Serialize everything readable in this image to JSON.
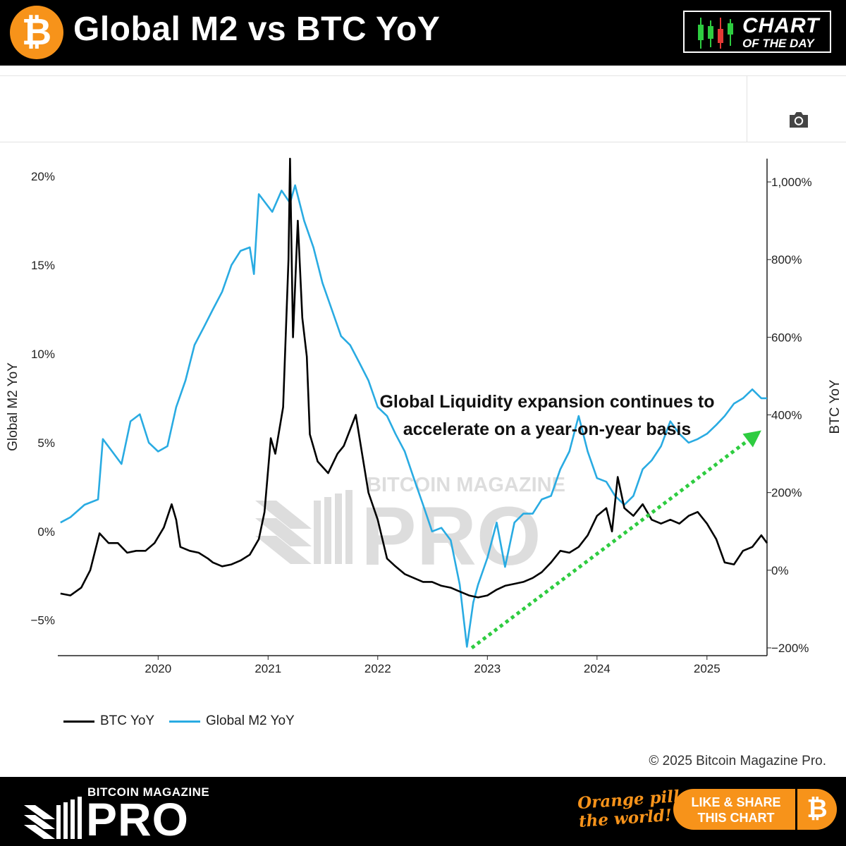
{
  "header": {
    "logo_symbol": "₿",
    "title": "Global M2 vs BTC YoY",
    "badge_line1": "CHART",
    "badge_line2": "OF THE DAY"
  },
  "toolbar": {
    "camera_icon": "camera-icon"
  },
  "watermark": {
    "small": "BITCOIN MAGAZINE",
    "big": "PRO"
  },
  "annotation": {
    "line1": "Global Liquidity expansion continues to",
    "line2": "accelerate on a year-on-year basis"
  },
  "footer": {
    "copyright": "© 2025 Bitcoin Magazine Pro.",
    "brand_small": "BITCOIN MAGAZINE",
    "brand_big": "PRO",
    "tagline_line1": "Orange pill",
    "tagline_line2": "the world!",
    "share_line1": "LIKE & SHARE",
    "share_line2": "THIS CHART",
    "share_symbol": "₿"
  },
  "colors": {
    "btc": "#000000",
    "m2": "#29abe2",
    "trend": "#2ecc40",
    "brand_orange": "#f7931a"
  },
  "chart_data": {
    "type": "line",
    "x_range": [
      "2019-02-01",
      "2025-07-20"
    ],
    "x_ticks": [
      "2020",
      "2021",
      "2022",
      "2023",
      "2024",
      "2025"
    ],
    "y_left": {
      "label": "Global M2 YoY",
      "range": [
        -7,
        21
      ],
      "ticks": [
        20,
        15,
        10,
        5,
        0,
        -5
      ],
      "tick_labels": [
        "20%",
        "15%",
        "10%",
        "5%",
        "0%",
        "−5%"
      ]
    },
    "y_right": {
      "label": "BTC YoY",
      "range": [
        -220,
        1060
      ],
      "ticks": [
        1000,
        800,
        600,
        400,
        200,
        0,
        -200
      ],
      "tick_labels": [
        "1,000%",
        "800%",
        "600%",
        "400%",
        "200%",
        "0%",
        "−200%"
      ]
    },
    "legend": {
      "placement": "bottom-left"
    },
    "series": [
      {
        "name": "BTC YoY",
        "axis": "right",
        "points": [
          [
            "2019-02-10",
            -60
          ],
          [
            "2019-03-15",
            -65
          ],
          [
            "2019-04-20",
            -45
          ],
          [
            "2019-05-20",
            0
          ],
          [
            "2019-06-20",
            95
          ],
          [
            "2019-07-20",
            70
          ],
          [
            "2019-08-20",
            70
          ],
          [
            "2019-09-20",
            45
          ],
          [
            "2019-10-20",
            50
          ],
          [
            "2019-11-20",
            50
          ],
          [
            "2019-12-20",
            70
          ],
          [
            "2020-01-20",
            110
          ],
          [
            "2020-02-15",
            170
          ],
          [
            "2020-03-01",
            130
          ],
          [
            "2020-03-15",
            60
          ],
          [
            "2020-04-15",
            50
          ],
          [
            "2020-05-15",
            45
          ],
          [
            "2020-06-15",
            30
          ],
          [
            "2020-07-01",
            20
          ],
          [
            "2020-08-01",
            10
          ],
          [
            "2020-09-01",
            15
          ],
          [
            "2020-10-01",
            25
          ],
          [
            "2020-11-01",
            40
          ],
          [
            "2020-12-01",
            80
          ],
          [
            "2020-12-20",
            150
          ],
          [
            "2021-01-10",
            340
          ],
          [
            "2021-01-25",
            300
          ],
          [
            "2021-02-20",
            420
          ],
          [
            "2021-03-10",
            800
          ],
          [
            "2021-03-15",
            1060
          ],
          [
            "2021-03-25",
            600
          ],
          [
            "2021-04-10",
            900
          ],
          [
            "2021-04-25",
            650
          ],
          [
            "2021-05-10",
            550
          ],
          [
            "2021-05-20",
            350
          ],
          [
            "2021-06-15",
            280
          ],
          [
            "2021-07-20",
            250
          ],
          [
            "2021-08-20",
            300
          ],
          [
            "2021-09-10",
            320
          ],
          [
            "2021-10-20",
            400
          ],
          [
            "2021-11-10",
            300
          ],
          [
            "2021-12-01",
            200
          ],
          [
            "2022-01-01",
            130
          ],
          [
            "2022-02-01",
            30
          ],
          [
            "2022-03-01",
            10
          ],
          [
            "2022-04-01",
            -10
          ],
          [
            "2022-05-01",
            -20
          ],
          [
            "2022-06-01",
            -30
          ],
          [
            "2022-07-01",
            -30
          ],
          [
            "2022-08-01",
            -40
          ],
          [
            "2022-09-01",
            -45
          ],
          [
            "2022-10-01",
            -55
          ],
          [
            "2022-11-01",
            -65
          ],
          [
            "2022-12-01",
            -70
          ],
          [
            "2023-01-01",
            -65
          ],
          [
            "2023-02-01",
            -50
          ],
          [
            "2023-03-01",
            -40
          ],
          [
            "2023-04-01",
            -35
          ],
          [
            "2023-05-01",
            -30
          ],
          [
            "2023-06-01",
            -20
          ],
          [
            "2023-07-01",
            -5
          ],
          [
            "2023-08-01",
            20
          ],
          [
            "2023-09-01",
            50
          ],
          [
            "2023-10-01",
            45
          ],
          [
            "2023-11-01",
            60
          ],
          [
            "2023-12-01",
            90
          ],
          [
            "2024-01-01",
            140
          ],
          [
            "2024-02-01",
            160
          ],
          [
            "2024-02-20",
            100
          ],
          [
            "2024-03-10",
            240
          ],
          [
            "2024-04-01",
            160
          ],
          [
            "2024-05-01",
            140
          ],
          [
            "2024-06-01",
            170
          ],
          [
            "2024-07-01",
            130
          ],
          [
            "2024-08-01",
            120
          ],
          [
            "2024-09-01",
            130
          ],
          [
            "2024-10-01",
            120
          ],
          [
            "2024-11-01",
            140
          ],
          [
            "2024-12-01",
            150
          ],
          [
            "2025-01-01",
            120
          ],
          [
            "2025-02-01",
            80
          ],
          [
            "2025-03-01",
            20
          ],
          [
            "2025-04-01",
            15
          ],
          [
            "2025-05-01",
            50
          ],
          [
            "2025-06-01",
            60
          ],
          [
            "2025-07-01",
            90
          ],
          [
            "2025-07-20",
            70
          ]
        ]
      },
      {
        "name": "Global M2 YoY",
        "axis": "left",
        "points": [
          [
            "2019-02-10",
            0.5
          ],
          [
            "2019-03-15",
            0.8
          ],
          [
            "2019-05-01",
            1.5
          ],
          [
            "2019-06-15",
            1.8
          ],
          [
            "2019-07-01",
            5.2
          ],
          [
            "2019-08-01",
            4.5
          ],
          [
            "2019-09-01",
            3.8
          ],
          [
            "2019-10-01",
            6.2
          ],
          [
            "2019-11-01",
            6.6
          ],
          [
            "2019-12-01",
            5.0
          ],
          [
            "2020-01-01",
            4.5
          ],
          [
            "2020-02-01",
            4.8
          ],
          [
            "2020-03-01",
            7.0
          ],
          [
            "2020-04-01",
            8.5
          ],
          [
            "2020-05-01",
            10.5
          ],
          [
            "2020-06-01",
            11.5
          ],
          [
            "2020-07-01",
            12.5
          ],
          [
            "2020-08-01",
            13.5
          ],
          [
            "2020-09-01",
            15.0
          ],
          [
            "2020-10-01",
            15.8
          ],
          [
            "2020-11-01",
            16.0
          ],
          [
            "2020-11-15",
            14.5
          ],
          [
            "2020-12-01",
            19.0
          ],
          [
            "2021-01-15",
            18.0
          ],
          [
            "2021-02-15",
            19.2
          ],
          [
            "2021-03-15",
            18.5
          ],
          [
            "2021-04-01",
            19.5
          ],
          [
            "2021-05-01",
            17.5
          ],
          [
            "2021-06-01",
            16.0
          ],
          [
            "2021-07-01",
            14.0
          ],
          [
            "2021-08-01",
            12.5
          ],
          [
            "2021-09-01",
            11.0
          ],
          [
            "2021-10-01",
            10.5
          ],
          [
            "2021-11-01",
            9.5
          ],
          [
            "2021-12-01",
            8.5
          ],
          [
            "2022-01-01",
            7.0
          ],
          [
            "2022-02-01",
            6.5
          ],
          [
            "2022-03-01",
            5.5
          ],
          [
            "2022-04-01",
            4.5
          ],
          [
            "2022-05-01",
            3.0
          ],
          [
            "2022-06-01",
            1.5
          ],
          [
            "2022-07-01",
            0.0
          ],
          [
            "2022-08-01",
            0.2
          ],
          [
            "2022-09-01",
            -0.5
          ],
          [
            "2022-10-01",
            -3.0
          ],
          [
            "2022-10-25",
            -6.5
          ],
          [
            "2022-11-15",
            -4.0
          ],
          [
            "2022-12-01",
            -3.0
          ],
          [
            "2023-01-01",
            -1.5
          ],
          [
            "2023-02-01",
            0.5
          ],
          [
            "2023-03-01",
            -2.0
          ],
          [
            "2023-04-01",
            0.5
          ],
          [
            "2023-05-01",
            1.0
          ],
          [
            "2023-06-01",
            1.0
          ],
          [
            "2023-07-01",
            1.8
          ],
          [
            "2023-08-01",
            2.0
          ],
          [
            "2023-09-01",
            3.5
          ],
          [
            "2023-10-01",
            4.5
          ],
          [
            "2023-11-01",
            6.5
          ],
          [
            "2023-12-01",
            4.5
          ],
          [
            "2024-01-01",
            3.0
          ],
          [
            "2024-02-01",
            2.8
          ],
          [
            "2024-03-01",
            2.0
          ],
          [
            "2024-04-01",
            1.5
          ],
          [
            "2024-05-01",
            2.0
          ],
          [
            "2024-06-01",
            3.5
          ],
          [
            "2024-07-01",
            4.0
          ],
          [
            "2024-08-01",
            4.8
          ],
          [
            "2024-09-01",
            6.2
          ],
          [
            "2024-10-01",
            5.5
          ],
          [
            "2024-11-01",
            5.0
          ],
          [
            "2024-12-01",
            5.2
          ],
          [
            "2025-01-01",
            5.5
          ],
          [
            "2025-02-01",
            6.0
          ],
          [
            "2025-03-01",
            6.5
          ],
          [
            "2025-04-01",
            7.2
          ],
          [
            "2025-05-01",
            7.5
          ],
          [
            "2025-06-01",
            8.0
          ],
          [
            "2025-07-01",
            7.5
          ],
          [
            "2025-07-20",
            7.5
          ]
        ]
      }
    ],
    "trend_arrow": {
      "from": [
        "2022-11-10",
        -200
      ],
      "to": [
        "2025-07-01",
        360
      ],
      "axis": "right",
      "style": "dotted"
    }
  }
}
